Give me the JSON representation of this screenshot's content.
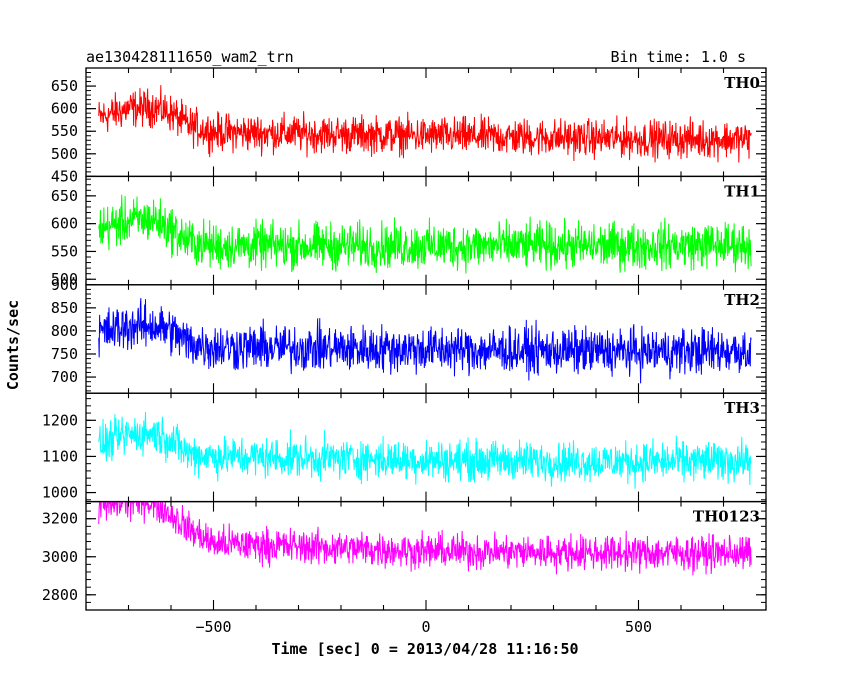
{
  "header": {
    "title": "ae130428111650_wam2_trn",
    "bin_time": "Bin time: 1.0 s"
  },
  "axes": {
    "xlabel": "Time [sec] 0 = 2013/04/28 11:16:50",
    "ylabel": "Counts/sec"
  },
  "chart_data": {
    "type": "line",
    "title": "ae130428111650_wam2_trn",
    "xlabel": "Time [sec] 0 = 2013/04/28 11:16:50",
    "ylabel": "Counts/sec",
    "xlim": [
      -800,
      800
    ],
    "x_range": [
      -770,
      765
    ],
    "x_ticks": [
      -500,
      0,
      500
    ],
    "bin_time_sec": 1.0,
    "grid": false,
    "panels": [
      {
        "name": "TH0",
        "color": "#ff0000",
        "ylim": [
          450,
          690
        ],
        "yticks": [
          450,
          500,
          550,
          600,
          650
        ],
        "level_points": [
          [
            -770,
            580
          ],
          [
            -700,
            600
          ],
          [
            -640,
            603
          ],
          [
            -600,
            590
          ],
          [
            -560,
            563
          ],
          [
            -500,
            548
          ],
          [
            0,
            540
          ],
          [
            500,
            533
          ],
          [
            765,
            532
          ]
        ],
        "noise_range": 45
      },
      {
        "name": "TH1",
        "color": "#00ff00",
        "ylim": [
          490,
          685
        ],
        "yticks": [
          500,
          550,
          600,
          650
        ],
        "level_points": [
          [
            -770,
            590
          ],
          [
            -700,
            605
          ],
          [
            -640,
            608
          ],
          [
            -600,
            590
          ],
          [
            -560,
            568
          ],
          [
            -500,
            560
          ],
          [
            0,
            560
          ],
          [
            500,
            560
          ],
          [
            765,
            562
          ]
        ],
        "noise_range": 45
      },
      {
        "name": "TH2",
        "color": "#0000ff",
        "ylim": [
          665,
          900
        ],
        "yticks": [
          700,
          750,
          800,
          850,
          900
        ],
        "level_points": [
          [
            -770,
            795
          ],
          [
            -700,
            810
          ],
          [
            -640,
            812
          ],
          [
            -600,
            800
          ],
          [
            -560,
            775
          ],
          [
            -500,
            765
          ],
          [
            0,
            760
          ],
          [
            500,
            755
          ],
          [
            765,
            758
          ]
        ],
        "noise_range": 55
      },
      {
        "name": "TH3",
        "color": "#00ffff",
        "ylim": [
          975,
          1275
        ],
        "yticks": [
          1000,
          1100,
          1200
        ],
        "level_points": [
          [
            -770,
            1130
          ],
          [
            -700,
            1160
          ],
          [
            -640,
            1165
          ],
          [
            -600,
            1145
          ],
          [
            -560,
            1110
          ],
          [
            -500,
            1100
          ],
          [
            0,
            1090
          ],
          [
            500,
            1085
          ],
          [
            765,
            1088
          ]
        ],
        "noise_range": 60
      },
      {
        "name": "TH0123",
        "color": "#ff00ff",
        "ylim": [
          2720,
          3290
        ],
        "yticks": [
          2800,
          3000,
          3200
        ],
        "level_points": [
          [
            -770,
            3260
          ],
          [
            -720,
            3285
          ],
          [
            -660,
            3295
          ],
          [
            -620,
            3260
          ],
          [
            -560,
            3150
          ],
          [
            -500,
            3070
          ],
          [
            0,
            3030
          ],
          [
            500,
            3020
          ],
          [
            765,
            3020
          ]
        ],
        "noise_range": 100
      }
    ]
  }
}
